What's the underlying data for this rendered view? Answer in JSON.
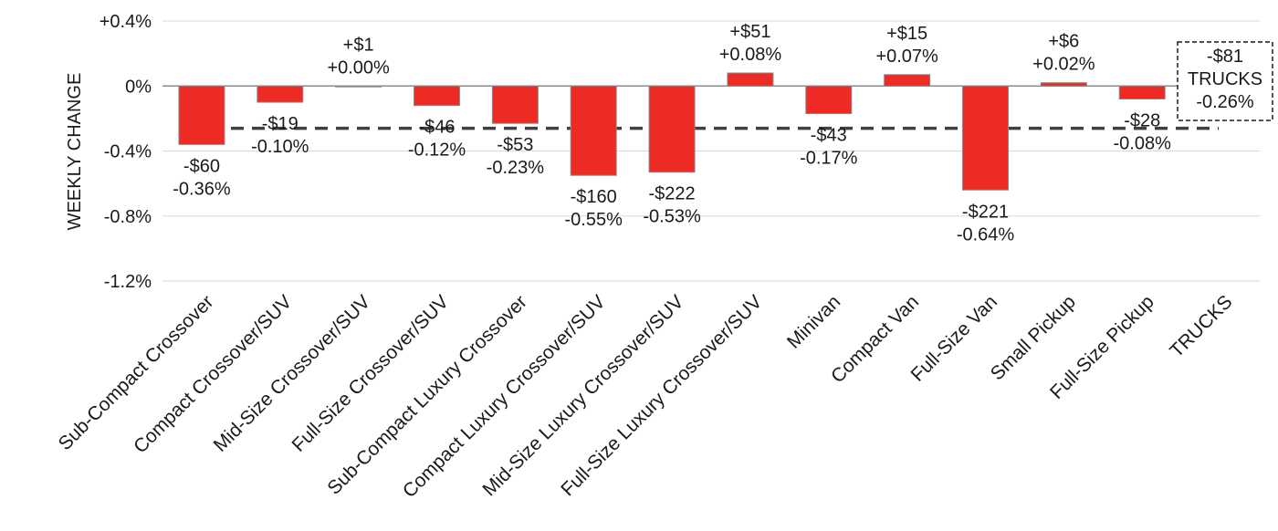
{
  "chart_data": {
    "type": "bar",
    "ylabel": "WEEKLY CHANGE",
    "ylim": [
      -1.2,
      0.4
    ],
    "yticks": [
      0.4,
      0,
      -0.4,
      -0.8,
      -1.2
    ],
    "ytick_labels": [
      "+0.4%",
      "0%",
      "-0.4%",
      "-0.8%",
      "-1.2%"
    ],
    "grid": true,
    "bar_color": "#ee2a24",
    "categories": [
      "Sub-Compact Crossover",
      "Compact Crossover/SUV",
      "Mid-Size Crossover/SUV",
      "Full-Size Crossover/SUV",
      "Sub-Compact Luxury Crossover",
      "Compact Luxury Crossover/SUV",
      "Mid-Size Luxury Crossover/SUV",
      "Full-Size Luxury Crossover/SUV",
      "Minivan",
      "Compact Van",
      "Full-Size Van",
      "Small Pickup",
      "Full-Size Pickup",
      "TRUCKS"
    ],
    "values": [
      -0.36,
      -0.1,
      0.0,
      -0.12,
      -0.23,
      -0.55,
      -0.53,
      0.08,
      -0.17,
      0.07,
      -0.64,
      0.02,
      -0.08,
      null
    ],
    "dollar_labels": [
      "-$60",
      "-$19",
      "+$1",
      "-$46",
      "-$53",
      "-$160",
      "-$222",
      "+$51",
      "-$43",
      "+$15",
      "-$221",
      "+$6",
      "-$28"
    ],
    "percent_labels": [
      "-0.36%",
      "-0.10%",
      "+0.00%",
      "-0.12%",
      "-0.23%",
      "-0.55%",
      "-0.53%",
      "+0.08%",
      "-0.17%",
      "+0.07%",
      "-0.64%",
      "+0.02%",
      "-0.08%"
    ],
    "average": {
      "value": -0.26,
      "label_lines": [
        "-$81",
        "TRUCKS",
        "-0.26%"
      ]
    }
  }
}
